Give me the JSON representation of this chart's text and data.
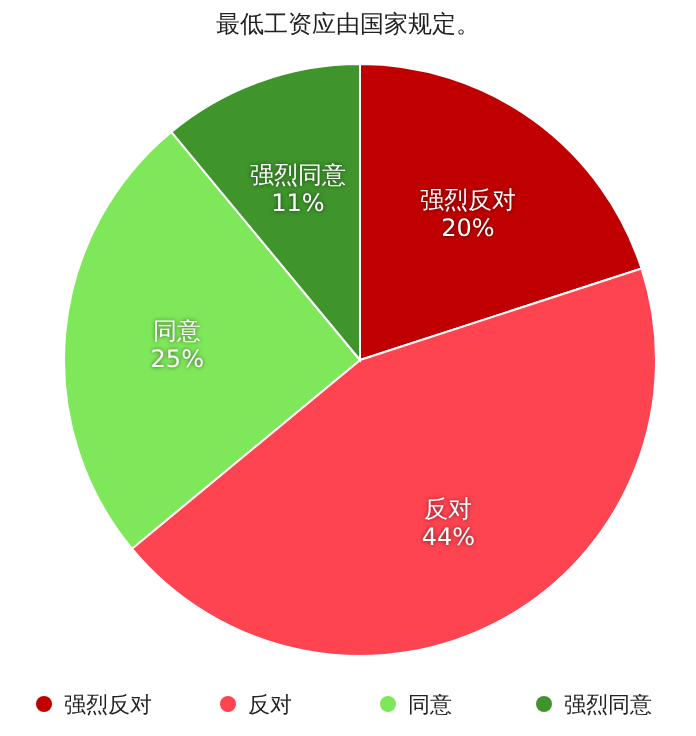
{
  "chart_data": {
    "type": "pie",
    "title": "最低工资应由国家规定。",
    "categories": [
      "强烈反对",
      "反对",
      "同意",
      "强烈同意"
    ],
    "values": [
      20,
      44,
      25,
      11
    ],
    "colors": [
      "#c00000",
      "#ff4451",
      "#7fe85a",
      "#3f942c"
    ],
    "value_labels": [
      "20%",
      "44%",
      "25%",
      "11%"
    ],
    "legend": "bottom"
  }
}
